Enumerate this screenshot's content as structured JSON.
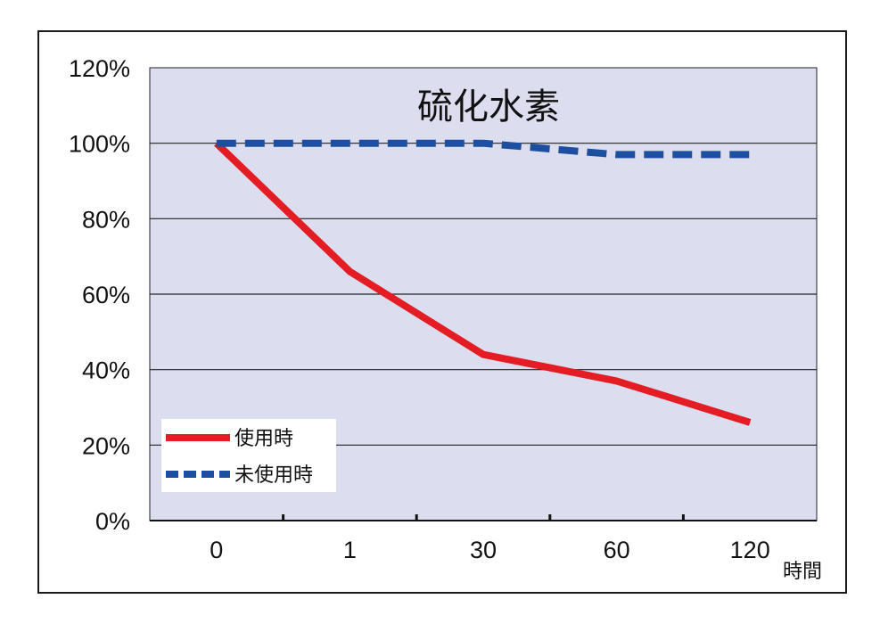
{
  "chart_data": {
    "type": "line",
    "title": "硫化水素",
    "xlabel": "時間",
    "ylabel": "",
    "categories": [
      "0",
      "1",
      "30",
      "60",
      "120"
    ],
    "ylim": [
      0,
      120
    ],
    "yticks": [
      "0%",
      "20%",
      "40%",
      "60%",
      "80%",
      "100%",
      "120%"
    ],
    "grid": true,
    "legend_position": "bottom-left",
    "series": [
      {
        "name": "使用時",
        "values": [
          100,
          66,
          44,
          37,
          26
        ],
        "color": "#e41d25",
        "style": "solid"
      },
      {
        "name": "未使用時",
        "values": [
          100,
          100,
          100,
          97,
          97
        ],
        "color": "#1c4fa0",
        "style": "dashed"
      }
    ],
    "plot_background": "#dcdef0"
  }
}
